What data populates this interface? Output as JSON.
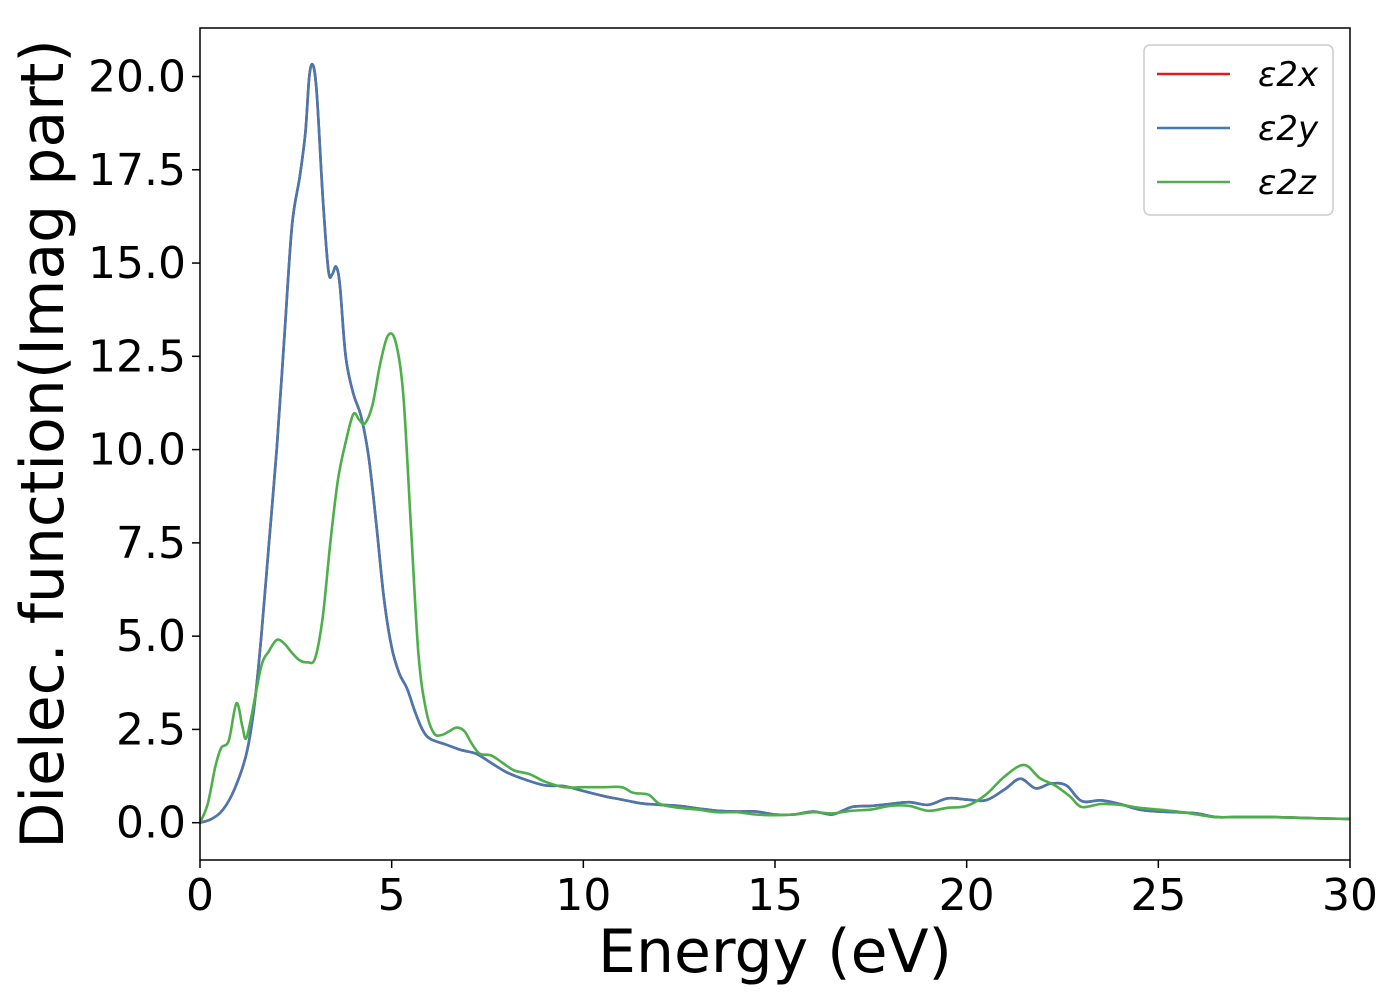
{
  "chart_data": {
    "type": "line",
    "xlabel": "Energy (eV)",
    "ylabel": "Dielec. function(Imag part)",
    "xlim": [
      0,
      30
    ],
    "ylim": [
      -1.0,
      21.3
    ],
    "x_ticks": [
      "0",
      "5",
      "10",
      "15",
      "20",
      "25",
      "30"
    ],
    "y_ticks": [
      "0.0",
      "2.5",
      "5.0",
      "7.5",
      "10.0",
      "12.5",
      "15.0",
      "17.5",
      "20.0"
    ],
    "grid": false,
    "legend_position": "top-right",
    "series": [
      {
        "name": "ε2x",
        "color": "#e41a1c",
        "points": [
          [
            0,
            0
          ],
          [
            0.3,
            0.1
          ],
          [
            0.6,
            0.35
          ],
          [
            0.9,
            0.9
          ],
          [
            1.2,
            1.8
          ],
          [
            1.4,
            3.0
          ],
          [
            1.6,
            5.0
          ],
          [
            1.8,
            7.5
          ],
          [
            2.0,
            10.0
          ],
          [
            2.2,
            13.0
          ],
          [
            2.4,
            16.0
          ],
          [
            2.6,
            17.3
          ],
          [
            2.75,
            18.5
          ],
          [
            2.85,
            20.0
          ],
          [
            2.95,
            20.3
          ],
          [
            3.05,
            19.5
          ],
          [
            3.2,
            16.8
          ],
          [
            3.35,
            14.8
          ],
          [
            3.45,
            14.7
          ],
          [
            3.55,
            14.9
          ],
          [
            3.65,
            14.4
          ],
          [
            3.8,
            12.5
          ],
          [
            4.0,
            11.5
          ],
          [
            4.2,
            10.9
          ],
          [
            4.4,
            9.8
          ],
          [
            4.6,
            8.0
          ],
          [
            4.8,
            6.0
          ],
          [
            5.0,
            4.7
          ],
          [
            5.2,
            4.0
          ],
          [
            5.4,
            3.6
          ],
          [
            5.6,
            3.0
          ],
          [
            5.8,
            2.5
          ],
          [
            6.0,
            2.25
          ],
          [
            6.4,
            2.1
          ],
          [
            6.8,
            1.95
          ],
          [
            7.2,
            1.85
          ],
          [
            7.6,
            1.6
          ],
          [
            8.0,
            1.35
          ],
          [
            8.5,
            1.15
          ],
          [
            9.0,
            1.0
          ],
          [
            9.5,
            0.98
          ],
          [
            10.0,
            0.85
          ],
          [
            10.5,
            0.72
          ],
          [
            11.0,
            0.62
          ],
          [
            11.5,
            0.52
          ],
          [
            12.0,
            0.48
          ],
          [
            12.5,
            0.45
          ],
          [
            13.0,
            0.38
          ],
          [
            13.5,
            0.32
          ],
          [
            14.0,
            0.3
          ],
          [
            14.5,
            0.3
          ],
          [
            15.0,
            0.22
          ],
          [
            15.5,
            0.22
          ],
          [
            16.0,
            0.3
          ],
          [
            16.5,
            0.22
          ],
          [
            17.0,
            0.42
          ],
          [
            17.5,
            0.45
          ],
          [
            18.0,
            0.5
          ],
          [
            18.5,
            0.55
          ],
          [
            19.0,
            0.48
          ],
          [
            19.5,
            0.65
          ],
          [
            20.0,
            0.62
          ],
          [
            20.5,
            0.6
          ],
          [
            21.0,
            0.9
          ],
          [
            21.4,
            1.18
          ],
          [
            21.8,
            0.92
          ],
          [
            22.2,
            1.05
          ],
          [
            22.6,
            1.0
          ],
          [
            23.0,
            0.58
          ],
          [
            23.5,
            0.6
          ],
          [
            24.0,
            0.5
          ],
          [
            24.5,
            0.35
          ],
          [
            25.0,
            0.3
          ],
          [
            25.5,
            0.28
          ],
          [
            26.0,
            0.25
          ],
          [
            26.5,
            0.15
          ],
          [
            27.0,
            0.15
          ],
          [
            28.0,
            0.15
          ],
          [
            29.0,
            0.12
          ],
          [
            30.0,
            0.1
          ]
        ]
      },
      {
        "name": "ε2y",
        "color": "#4878b0",
        "points": [
          [
            0,
            0
          ],
          [
            0.3,
            0.1
          ],
          [
            0.6,
            0.35
          ],
          [
            0.9,
            0.9
          ],
          [
            1.2,
            1.8
          ],
          [
            1.4,
            3.0
          ],
          [
            1.6,
            5.0
          ],
          [
            1.8,
            7.5
          ],
          [
            2.0,
            10.0
          ],
          [
            2.2,
            13.0
          ],
          [
            2.4,
            16.0
          ],
          [
            2.6,
            17.3
          ],
          [
            2.75,
            18.5
          ],
          [
            2.85,
            20.0
          ],
          [
            2.95,
            20.3
          ],
          [
            3.05,
            19.5
          ],
          [
            3.2,
            16.8
          ],
          [
            3.35,
            14.8
          ],
          [
            3.45,
            14.7
          ],
          [
            3.55,
            14.9
          ],
          [
            3.65,
            14.4
          ],
          [
            3.8,
            12.5
          ],
          [
            4.0,
            11.5
          ],
          [
            4.2,
            10.9
          ],
          [
            4.4,
            9.8
          ],
          [
            4.6,
            8.0
          ],
          [
            4.8,
            6.0
          ],
          [
            5.0,
            4.7
          ],
          [
            5.2,
            4.0
          ],
          [
            5.4,
            3.6
          ],
          [
            5.6,
            3.0
          ],
          [
            5.8,
            2.5
          ],
          [
            6.0,
            2.25
          ],
          [
            6.4,
            2.1
          ],
          [
            6.8,
            1.95
          ],
          [
            7.2,
            1.85
          ],
          [
            7.6,
            1.6
          ],
          [
            8.0,
            1.35
          ],
          [
            8.5,
            1.15
          ],
          [
            9.0,
            1.0
          ],
          [
            9.5,
            0.98
          ],
          [
            10.0,
            0.85
          ],
          [
            10.5,
            0.72
          ],
          [
            11.0,
            0.62
          ],
          [
            11.5,
            0.52
          ],
          [
            12.0,
            0.48
          ],
          [
            12.5,
            0.45
          ],
          [
            13.0,
            0.38
          ],
          [
            13.5,
            0.32
          ],
          [
            14.0,
            0.3
          ],
          [
            14.5,
            0.3
          ],
          [
            15.0,
            0.22
          ],
          [
            15.5,
            0.22
          ],
          [
            16.0,
            0.3
          ],
          [
            16.5,
            0.22
          ],
          [
            17.0,
            0.42
          ],
          [
            17.5,
            0.45
          ],
          [
            18.0,
            0.5
          ],
          [
            18.5,
            0.55
          ],
          [
            19.0,
            0.48
          ],
          [
            19.5,
            0.65
          ],
          [
            20.0,
            0.62
          ],
          [
            20.5,
            0.6
          ],
          [
            21.0,
            0.9
          ],
          [
            21.4,
            1.18
          ],
          [
            21.8,
            0.92
          ],
          [
            22.2,
            1.05
          ],
          [
            22.6,
            1.0
          ],
          [
            23.0,
            0.58
          ],
          [
            23.5,
            0.6
          ],
          [
            24.0,
            0.5
          ],
          [
            24.5,
            0.35
          ],
          [
            25.0,
            0.3
          ],
          [
            25.5,
            0.28
          ],
          [
            26.0,
            0.25
          ],
          [
            26.5,
            0.15
          ],
          [
            27.0,
            0.15
          ],
          [
            28.0,
            0.15
          ],
          [
            29.0,
            0.12
          ],
          [
            30.0,
            0.1
          ]
        ]
      },
      {
        "name": "ε2z",
        "color": "#4daf4a",
        "points": [
          [
            0,
            0
          ],
          [
            0.2,
            0.5
          ],
          [
            0.4,
            1.5
          ],
          [
            0.55,
            2.0
          ],
          [
            0.75,
            2.2
          ],
          [
            0.95,
            3.2
          ],
          [
            1.1,
            2.6
          ],
          [
            1.2,
            2.25
          ],
          [
            1.35,
            2.9
          ],
          [
            1.6,
            4.2
          ],
          [
            1.8,
            4.6
          ],
          [
            2.0,
            4.9
          ],
          [
            2.2,
            4.8
          ],
          [
            2.4,
            4.55
          ],
          [
            2.6,
            4.35
          ],
          [
            2.8,
            4.3
          ],
          [
            3.0,
            4.4
          ],
          [
            3.2,
            5.5
          ],
          [
            3.4,
            7.5
          ],
          [
            3.6,
            9.2
          ],
          [
            3.8,
            10.2
          ],
          [
            4.0,
            10.95
          ],
          [
            4.15,
            10.8
          ],
          [
            4.3,
            10.7
          ],
          [
            4.5,
            11.2
          ],
          [
            4.7,
            12.3
          ],
          [
            4.9,
            13.05
          ],
          [
            5.1,
            12.9
          ],
          [
            5.3,
            11.5
          ],
          [
            5.5,
            8.0
          ],
          [
            5.7,
            4.5
          ],
          [
            5.9,
            3.0
          ],
          [
            6.1,
            2.4
          ],
          [
            6.3,
            2.35
          ],
          [
            6.5,
            2.45
          ],
          [
            6.7,
            2.55
          ],
          [
            6.9,
            2.45
          ],
          [
            7.1,
            2.1
          ],
          [
            7.3,
            1.85
          ],
          [
            7.6,
            1.8
          ],
          [
            7.9,
            1.6
          ],
          [
            8.2,
            1.4
          ],
          [
            8.6,
            1.3
          ],
          [
            9.0,
            1.1
          ],
          [
            9.5,
            0.95
          ],
          [
            10.0,
            0.95
          ],
          [
            10.5,
            0.95
          ],
          [
            11.0,
            0.95
          ],
          [
            11.3,
            0.8
          ],
          [
            11.7,
            0.75
          ],
          [
            12.0,
            0.5
          ],
          [
            12.5,
            0.4
          ],
          [
            13.0,
            0.35
          ],
          [
            13.5,
            0.28
          ],
          [
            14.0,
            0.28
          ],
          [
            14.5,
            0.22
          ],
          [
            15.0,
            0.2
          ],
          [
            15.5,
            0.22
          ],
          [
            16.0,
            0.28
          ],
          [
            16.5,
            0.25
          ],
          [
            17.0,
            0.32
          ],
          [
            17.5,
            0.35
          ],
          [
            18.0,
            0.45
          ],
          [
            18.5,
            0.45
          ],
          [
            19.0,
            0.32
          ],
          [
            19.5,
            0.4
          ],
          [
            20.0,
            0.45
          ],
          [
            20.5,
            0.75
          ],
          [
            21.0,
            1.25
          ],
          [
            21.5,
            1.55
          ],
          [
            21.9,
            1.2
          ],
          [
            22.3,
            1.0
          ],
          [
            22.7,
            0.7
          ],
          [
            23.0,
            0.42
          ],
          [
            23.5,
            0.5
          ],
          [
            24.0,
            0.48
          ],
          [
            24.5,
            0.4
          ],
          [
            25.0,
            0.35
          ],
          [
            25.5,
            0.3
          ],
          [
            26.0,
            0.22
          ],
          [
            26.5,
            0.15
          ],
          [
            27.0,
            0.15
          ],
          [
            28.0,
            0.15
          ],
          [
            29.0,
            0.12
          ],
          [
            30.0,
            0.1
          ]
        ]
      }
    ]
  }
}
